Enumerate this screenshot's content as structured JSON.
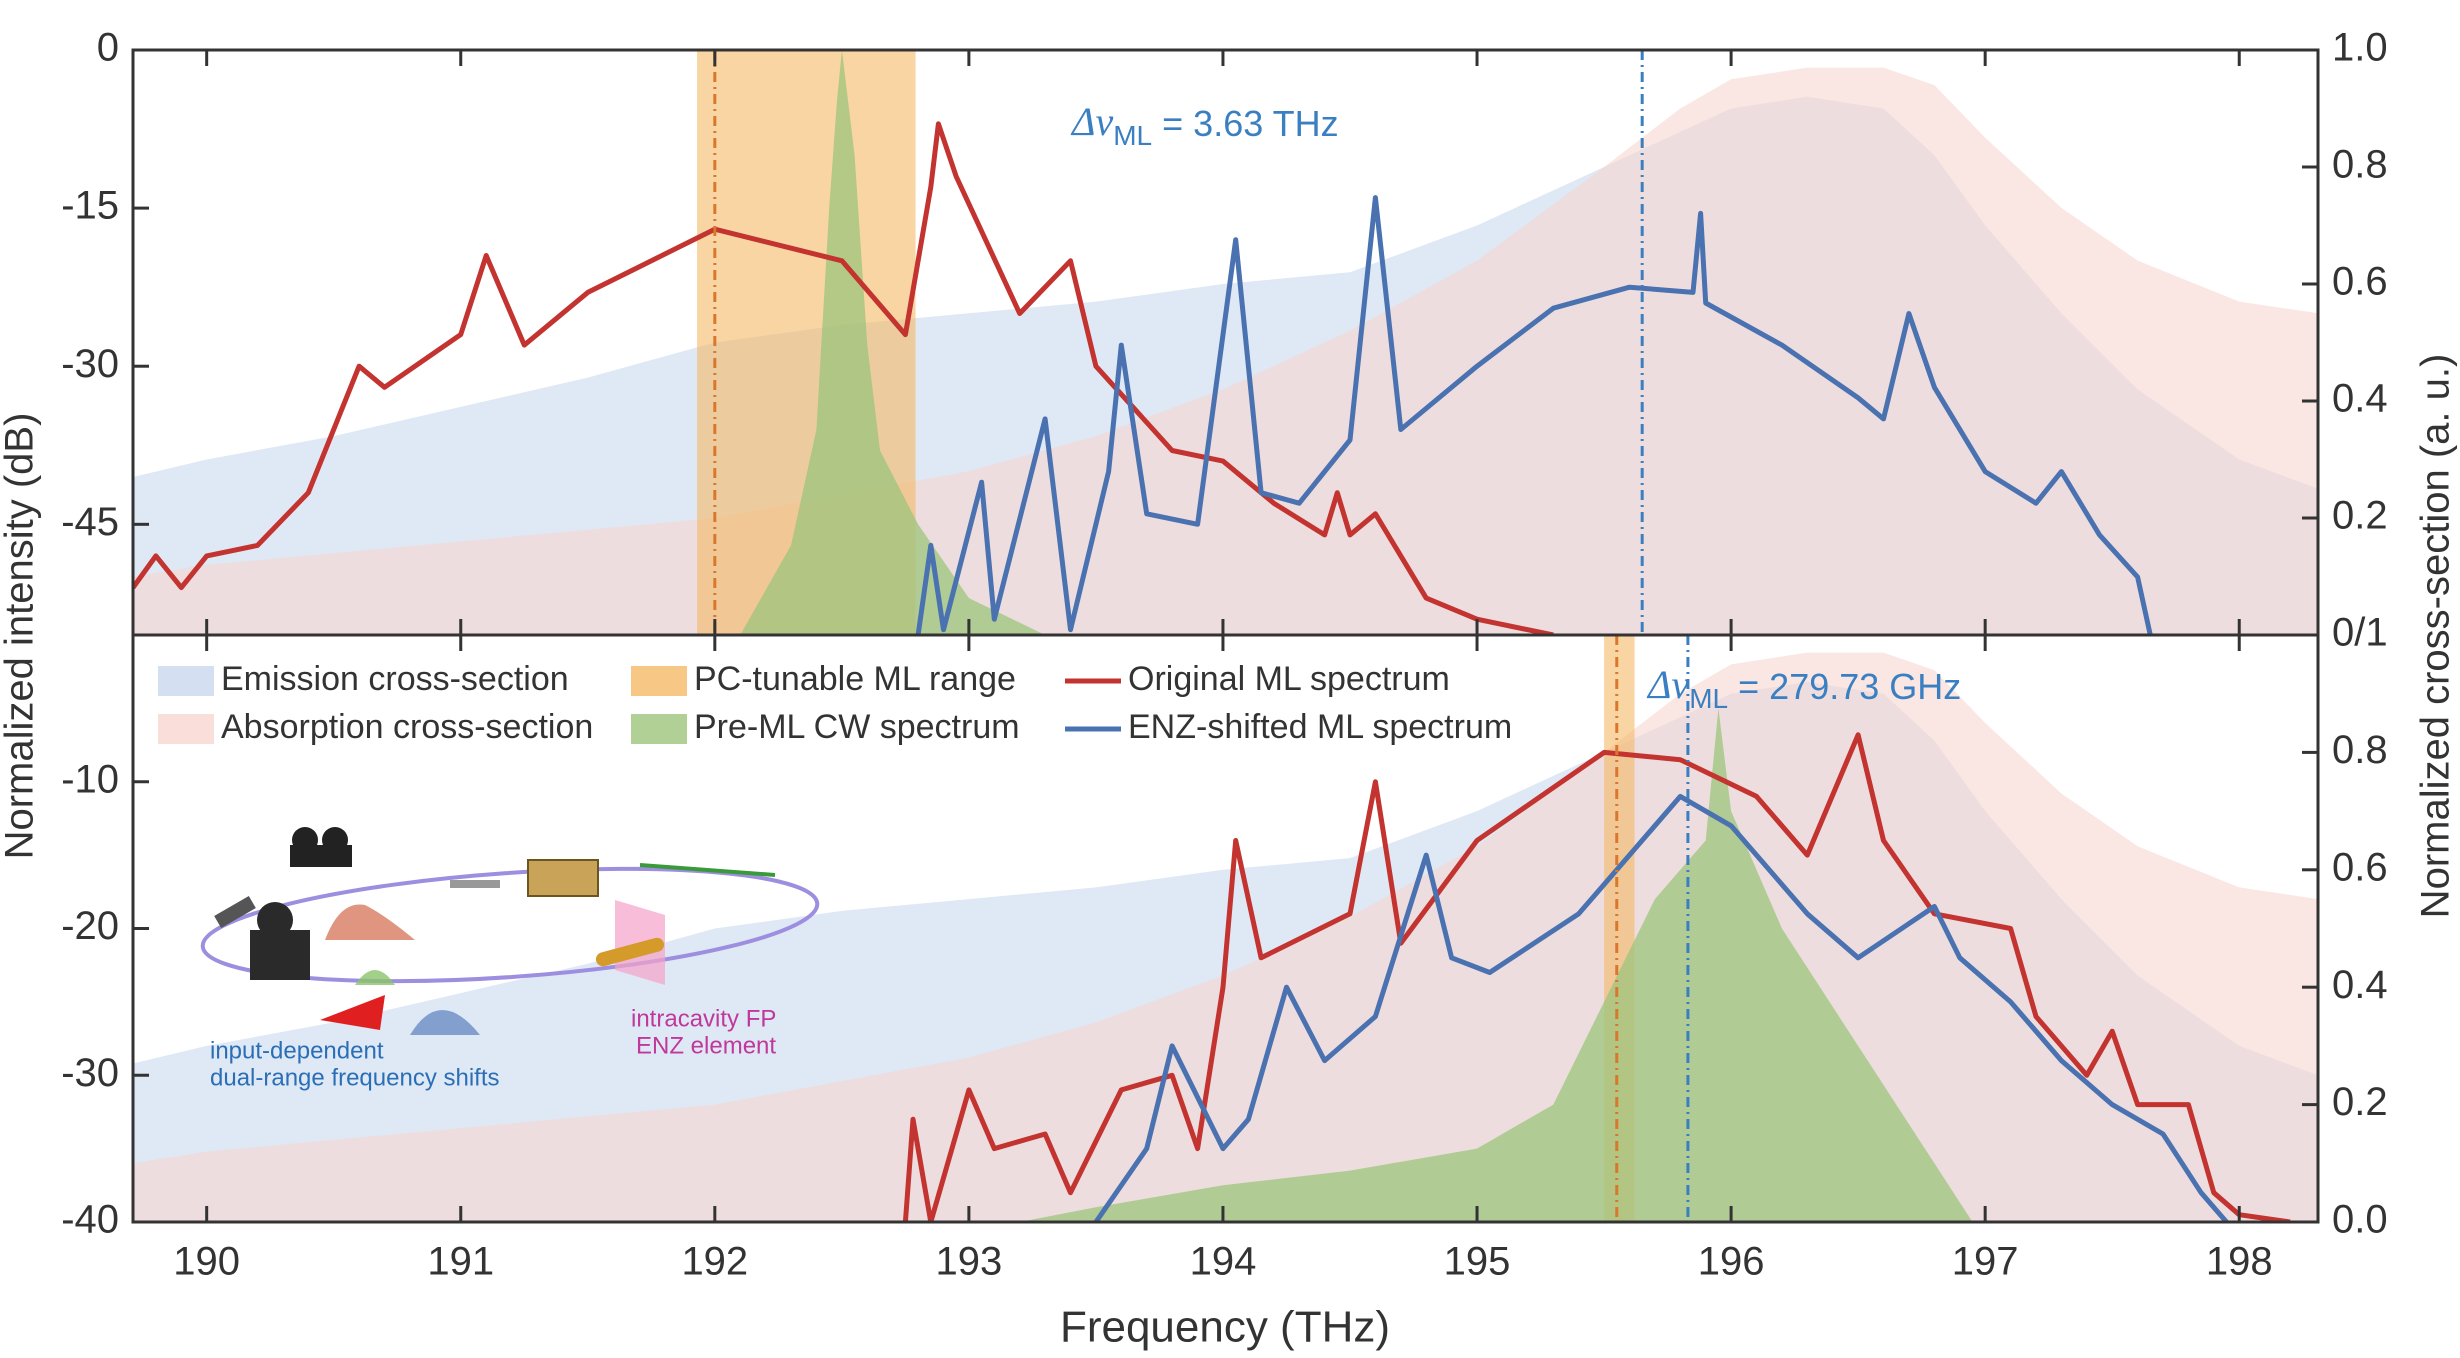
{
  "figure": {
    "xlabel": "Frequency (THz)",
    "ylabel": "Normalized intensity (dB)",
    "y2label": "Normalized cross-section (a. u.)"
  },
  "inset": {
    "labels": [
      "input-dependent",
      "dual-range frequency shifts",
      "intracavity FP",
      "ENZ element"
    ]
  },
  "chart_data": [
    {
      "type": "line",
      "xlim": [
        189.71,
        198.31
      ],
      "xticks": [
        190,
        191,
        192,
        193,
        194,
        195,
        196,
        197,
        198
      ],
      "ylim": [
        -55.5,
        0
      ],
      "yticks": [
        0,
        -15,
        -30,
        -45
      ],
      "y2lim": [
        0,
        1
      ],
      "y2ticks": [
        {
          "value": 0,
          "label": "0/1"
        },
        0.2,
        0.4,
        0.6,
        0.8,
        {
          "value": 1,
          "label": "1.0"
        }
      ],
      "bands": [
        {
          "color": "#f5b966",
          "x0": 191.93,
          "x1": 192.79
        }
      ],
      "vlines": [
        {
          "x": 192.0,
          "color": "#d9782b"
        },
        {
          "x": 195.65,
          "color": "#3a7fc1"
        }
      ],
      "annotation": {
        "text": "Δν",
        "sub": "ML",
        "suffix": " = 3.63 THz",
        "color": "#3a7fc1"
      },
      "series": [
        {
          "color": "#c9d8ef",
          "axis": "y2",
          "fill": true,
          "x": [
            189.71,
            190,
            190.5,
            191,
            191.5,
            192,
            192.5,
            193,
            193.5,
            194,
            194.5,
            195,
            195.5,
            195.8,
            196,
            196.3,
            196.6,
            196.8,
            197,
            197.3,
            197.6,
            198,
            198.31
          ],
          "values": [
            0.27,
            0.3,
            0.34,
            0.39,
            0.44,
            0.5,
            0.53,
            0.55,
            0.57,
            0.6,
            0.62,
            0.7,
            0.8,
            0.86,
            0.9,
            0.92,
            0.9,
            0.82,
            0.7,
            0.55,
            0.42,
            0.3,
            0.25
          ]
        },
        {
          "color": "#f7d6cf",
          "axis": "y2",
          "fill": true,
          "x": [
            189.71,
            190,
            190.5,
            191,
            191.5,
            192,
            192.5,
            193,
            193.5,
            194,
            194.5,
            195,
            195.5,
            195.8,
            196,
            196.3,
            196.6,
            196.8,
            197,
            197.3,
            197.6,
            198,
            198.31
          ],
          "values": [
            0.1,
            0.12,
            0.14,
            0.16,
            0.18,
            0.2,
            0.24,
            0.28,
            0.34,
            0.42,
            0.52,
            0.64,
            0.8,
            0.9,
            0.95,
            0.97,
            0.97,
            0.94,
            0.85,
            0.73,
            0.64,
            0.57,
            0.55
          ]
        },
        {
          "color": "#9cc47c",
          "fill": true,
          "x": [
            192.1,
            192.3,
            192.4,
            192.45,
            192.48,
            192.5,
            192.55,
            192.6,
            192.65,
            192.8,
            193,
            193.3
          ],
          "values": [
            -55.5,
            -47,
            -36,
            -15,
            -5,
            0,
            -10,
            -28,
            -38,
            -45,
            -52,
            -55.5
          ]
        },
        {
          "color": "#c3332f",
          "x": [
            189.71,
            189.8,
            189.9,
            190,
            190.2,
            190.4,
            190.6,
            190.7,
            191,
            191.1,
            191.25,
            191.5,
            192,
            192.5,
            192.75,
            192.85,
            192.88,
            192.95,
            193.2,
            193.4,
            193.5,
            193.8,
            194,
            194.2,
            194.4,
            194.45,
            194.5,
            194.6,
            194.8,
            195,
            195.3
          ],
          "values": [
            -51,
            -48,
            -51,
            -48,
            -47,
            -42,
            -30,
            -32,
            -27,
            -19.5,
            -28,
            -23,
            -17,
            -20,
            -27,
            -13,
            -7,
            -12,
            -25,
            -20,
            -30,
            -38,
            -39,
            -43,
            -46,
            -42,
            -46,
            -44,
            -52,
            -54,
            -55.5
          ]
        },
        {
          "color": "#4a72b0",
          "x": [
            192.8,
            192.85,
            192.9,
            193.05,
            193.1,
            193.3,
            193.4,
            193.55,
            193.6,
            193.7,
            193.9,
            194.05,
            194.15,
            194.3,
            194.5,
            194.6,
            194.7,
            195,
            195.3,
            195.6,
            195.85,
            195.88,
            195.9,
            196.2,
            196.5,
            196.6,
            196.7,
            196.8,
            197,
            197.2,
            197.3,
            197.45,
            197.6,
            197.65
          ],
          "values": [
            -55.5,
            -47,
            -55,
            -41,
            -54,
            -35,
            -55,
            -40,
            -28,
            -44,
            -45,
            -18,
            -42,
            -43,
            -37,
            -14,
            -36,
            -30,
            -24.5,
            -22.5,
            -23,
            -15.5,
            -24,
            -28,
            -33,
            -35,
            -25,
            -32,
            -40,
            -43,
            -40,
            -46,
            -50,
            -55.5
          ]
        }
      ]
    },
    {
      "type": "line",
      "xlim": [
        189.71,
        198.31
      ],
      "xticks": [
        190,
        191,
        192,
        193,
        194,
        195,
        196,
        197,
        198
      ],
      "ylim": [
        -40,
        0
      ],
      "yticks": [
        -10,
        -20,
        -30,
        -40
      ],
      "y2lim": [
        0,
        1
      ],
      "y2ticks": [
        {
          "value": 0,
          "label": "0.0"
        },
        0.2,
        0.4,
        0.6,
        0.8
      ],
      "bands": [
        {
          "name": "PC-tunable ML range",
          "color": "#f5b966",
          "x0": 195.5,
          "x1": 195.62
        }
      ],
      "vlines": [
        {
          "x": 195.55,
          "color": "#d9782b"
        },
        {
          "x": 195.83,
          "color": "#3a7fc1"
        }
      ],
      "annotation": {
        "text": "Δν",
        "sub": "ML",
        "suffix": " = 279.73 GHz",
        "color": "#3a7fc1"
      },
      "series": [
        {
          "name": "Emission cross-section",
          "color": "#c9d8ef",
          "axis": "y2",
          "fill": true,
          "x": [
            189.71,
            190,
            190.5,
            191,
            191.5,
            192,
            192.5,
            193,
            193.5,
            194,
            194.5,
            195,
            195.5,
            195.8,
            196,
            196.3,
            196.6,
            196.8,
            197,
            197.3,
            197.6,
            198,
            198.31
          ],
          "values": [
            0.27,
            0.3,
            0.34,
            0.39,
            0.44,
            0.5,
            0.53,
            0.55,
            0.57,
            0.6,
            0.62,
            0.7,
            0.8,
            0.86,
            0.9,
            0.92,
            0.9,
            0.82,
            0.7,
            0.55,
            0.42,
            0.3,
            0.25
          ]
        },
        {
          "name": "Absorption cross-section",
          "color": "#f7d6cf",
          "axis": "y2",
          "fill": true,
          "x": [
            189.71,
            190,
            190.5,
            191,
            191.5,
            192,
            192.5,
            193,
            193.5,
            194,
            194.5,
            195,
            195.5,
            195.8,
            196,
            196.3,
            196.6,
            196.8,
            197,
            197.3,
            197.6,
            198,
            198.31
          ],
          "values": [
            0.1,
            0.12,
            0.14,
            0.16,
            0.18,
            0.2,
            0.24,
            0.28,
            0.34,
            0.42,
            0.52,
            0.64,
            0.8,
            0.9,
            0.95,
            0.97,
            0.97,
            0.94,
            0.85,
            0.73,
            0.64,
            0.57,
            0.55
          ]
        },
        {
          "name": "Pre-ML CW spectrum",
          "color": "#9cc47c",
          "fill": true,
          "x": [
            193.2,
            193.5,
            194,
            194.5,
            195,
            195.3,
            195.5,
            195.7,
            195.9,
            195.95,
            196,
            196.2,
            196.5,
            196.8,
            196.95
          ],
          "values": [
            -40,
            -39,
            -37.5,
            -36.5,
            -35,
            -32,
            -25,
            -18,
            -14,
            -5,
            -12,
            -20,
            -28,
            -36,
            -40
          ]
        },
        {
          "name": "Original ML spectrum",
          "color": "#c3332f",
          "x": [
            192.75,
            192.78,
            192.85,
            193,
            193.1,
            193.3,
            193.4,
            193.6,
            193.8,
            193.9,
            194,
            194.05,
            194.15,
            194.5,
            194.6,
            194.7,
            195,
            195.5,
            195.8,
            196.1,
            196.3,
            196.5,
            196.6,
            196.8,
            197.1,
            197.2,
            197.4,
            197.5,
            197.6,
            197.8,
            197.9,
            198,
            198.2
          ],
          "values": [
            -40,
            -33,
            -40,
            -31,
            -35,
            -34,
            -38,
            -31,
            -30,
            -35,
            -24,
            -14,
            -22,
            -19,
            -10,
            -21,
            -14,
            -8,
            -8.5,
            -11,
            -15,
            -6.8,
            -14,
            -19,
            -20,
            -26,
            -30,
            -27,
            -32,
            -32,
            -38,
            -39.5,
            -40
          ]
        },
        {
          "name": "ENZ-shifted ML spectrum",
          "color": "#4a72b0",
          "x": [
            193.5,
            193.7,
            193.8,
            194,
            194.1,
            194.25,
            194.4,
            194.6,
            194.8,
            194.9,
            195.05,
            195.4,
            195.8,
            196,
            196.3,
            196.5,
            196.8,
            196.9,
            197.1,
            197.3,
            197.5,
            197.7,
            197.85,
            197.95
          ],
          "values": [
            -40,
            -35,
            -28,
            -35,
            -33,
            -24,
            -29,
            -26,
            -15,
            -22,
            -23,
            -19,
            -11,
            -13,
            -19,
            -22,
            -18.5,
            -22,
            -25,
            -29,
            -32,
            -34,
            -38,
            -40
          ]
        }
      ]
    }
  ]
}
